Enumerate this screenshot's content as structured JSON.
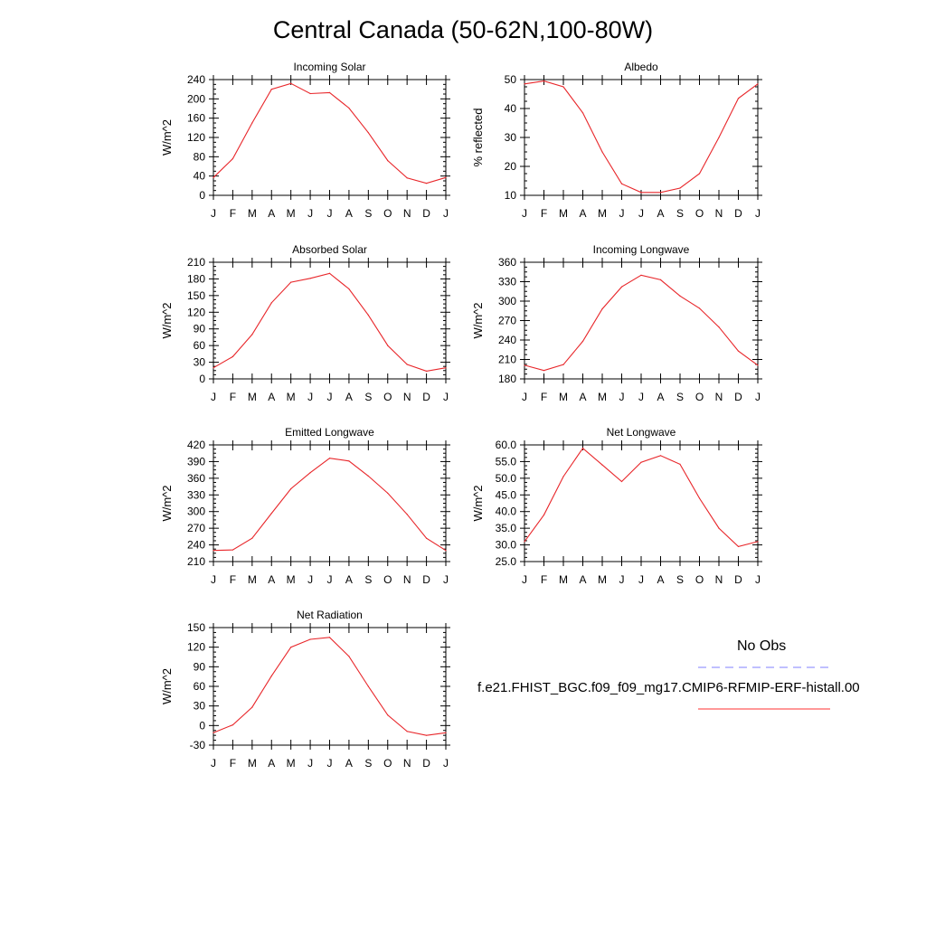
{
  "title": "Central Canada (50-62N,100-80W)",
  "legend": {
    "obs_label": "No Obs",
    "obs_color": "#8080ff",
    "model_label": "f.e21.FHIST_BGC.f09_f09_mg17.CMIP6-RFMIP-ERF-histall.00",
    "model_color": "#ff3030"
  },
  "line_color": "#e8262a",
  "chart_data": [
    {
      "type": "line",
      "title": "Incoming Solar",
      "ylabel": "W/m^2",
      "categories": [
        "J",
        "F",
        "M",
        "A",
        "M",
        "J",
        "J",
        "A",
        "S",
        "O",
        "N",
        "D",
        "J"
      ],
      "values": [
        37,
        76,
        150,
        220,
        232,
        211,
        213,
        181,
        130,
        72,
        36,
        25,
        37
      ],
      "ylim": [
        0,
        240
      ],
      "yticks": [
        "0",
        "40",
        "80",
        "120",
        "160",
        "200",
        "240"
      ]
    },
    {
      "type": "line",
      "title": "Albedo",
      "ylabel": "% reflected",
      "categories": [
        "J",
        "F",
        "M",
        "A",
        "M",
        "J",
        "J",
        "A",
        "S",
        "O",
        "N",
        "D",
        "J"
      ],
      "values": [
        48.5,
        49.5,
        47.5,
        38.5,
        25,
        14,
        11,
        11,
        12.5,
        17.5,
        30,
        43.5,
        48.5
      ],
      "ylim": [
        10,
        50
      ],
      "yticks": [
        "10",
        "20",
        "30",
        "40",
        "50"
      ]
    },
    {
      "type": "line",
      "title": "Absorbed Solar",
      "ylabel": "W/m^2",
      "categories": [
        "J",
        "F",
        "M",
        "A",
        "M",
        "J",
        "J",
        "A",
        "S",
        "O",
        "N",
        "D",
        "J"
      ],
      "values": [
        20,
        40,
        80,
        137,
        174,
        181,
        190,
        162,
        115,
        60,
        26,
        14,
        20
      ],
      "ylim": [
        0,
        210
      ],
      "yticks": [
        "0",
        "30",
        "60",
        "90",
        "120",
        "150",
        "180",
        "210"
      ]
    },
    {
      "type": "line",
      "title": "Incoming Longwave",
      "ylabel": "W/m^2",
      "categories": [
        "J",
        "F",
        "M",
        "A",
        "M",
        "J",
        "J",
        "A",
        "S",
        "O",
        "N",
        "D",
        "J"
      ],
      "values": [
        201,
        193,
        202,
        238,
        288,
        322,
        340,
        333,
        308,
        289,
        260,
        223,
        201
      ],
      "ylim": [
        180,
        360
      ],
      "yticks": [
        "180",
        "210",
        "240",
        "270",
        "300",
        "330",
        "360"
      ]
    },
    {
      "type": "line",
      "title": "Emitted Longwave",
      "ylabel": "W/m^2",
      "categories": [
        "J",
        "F",
        "M",
        "A",
        "M",
        "J",
        "J",
        "A",
        "S",
        "O",
        "N",
        "D",
        "J"
      ],
      "values": [
        230,
        231,
        252,
        297,
        341,
        370,
        396,
        391,
        364,
        333,
        295,
        252,
        230
      ],
      "ylim": [
        210,
        420
      ],
      "yticks": [
        "210",
        "240",
        "270",
        "300",
        "330",
        "360",
        "390",
        "420"
      ]
    },
    {
      "type": "line",
      "title": "Net Longwave",
      "ylabel": "W/m^2",
      "categories": [
        "J",
        "F",
        "M",
        "A",
        "M",
        "J",
        "J",
        "A",
        "S",
        "O",
        "N",
        "D",
        "J"
      ],
      "values": [
        31,
        39,
        50.5,
        59,
        54,
        49,
        54.8,
        56.8,
        54.2,
        44,
        35,
        29.5,
        31
      ],
      "ylim": [
        25,
        60
      ],
      "yticks": [
        "25.0",
        "30.0",
        "35.0",
        "40.0",
        "45.0",
        "50.0",
        "55.0",
        "60.0"
      ]
    },
    {
      "type": "line",
      "title": "Net Radiation",
      "ylabel": "W/m^2",
      "categories": [
        "J",
        "F",
        "M",
        "A",
        "M",
        "J",
        "J",
        "A",
        "S",
        "O",
        "N",
        "D",
        "J"
      ],
      "values": [
        -11,
        1,
        28,
        76,
        120,
        132,
        135,
        106,
        60,
        16,
        -9,
        -15,
        -11
      ],
      "ylim": [
        -30,
        150
      ],
      "yticks": [
        "-30",
        "0",
        "30",
        "60",
        "90",
        "120",
        "150"
      ]
    }
  ]
}
